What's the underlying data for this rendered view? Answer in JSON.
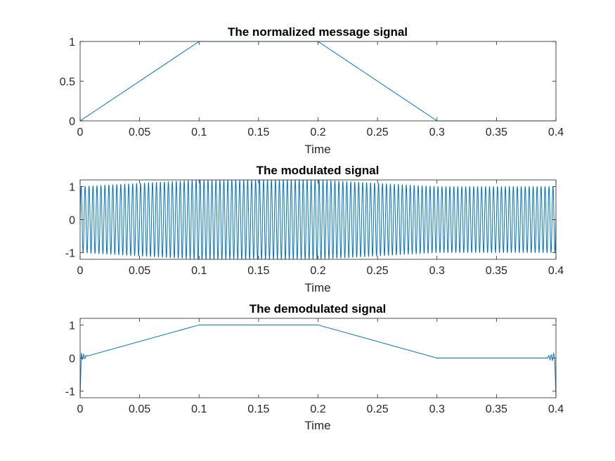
{
  "chart_data": [
    {
      "type": "line",
      "title": "The normalized message signal",
      "xlabel": "Time",
      "ylabel": "",
      "xlim": [
        0,
        0.4
      ],
      "ylim": [
        0,
        1
      ],
      "xticks": [
        0,
        0.05,
        0.1,
        0.15,
        0.2,
        0.25,
        0.3,
        0.35,
        0.4
      ],
      "xtick_labels": [
        "0",
        "0.05",
        "0.1",
        "0.15",
        "0.2",
        "0.25",
        "0.3",
        "0.35",
        "0.4"
      ],
      "yticks": [
        0,
        0.5,
        1
      ],
      "ytick_labels": [
        "0",
        "0.5",
        "1"
      ],
      "grid": false,
      "series": [
        {
          "x": [
            0,
            0.1,
            0.2,
            0.3,
            0.4
          ],
          "y": [
            0,
            1,
            1,
            0,
            0
          ]
        }
      ]
    },
    {
      "type": "line",
      "title": "The modulated signal",
      "xlabel": "Time",
      "ylabel": "",
      "xlim": [
        0,
        0.4
      ],
      "ylim": [
        -1.2,
        1.2
      ],
      "xticks": [
        0,
        0.05,
        0.1,
        0.15,
        0.2,
        0.25,
        0.3,
        0.35,
        0.4
      ],
      "xtick_labels": [
        "0",
        "0.05",
        "0.1",
        "0.15",
        "0.2",
        "0.25",
        "0.3",
        "0.35",
        "0.4"
      ],
      "yticks": [
        -1,
        0,
        1
      ],
      "ytick_labels": [
        "-1",
        "0",
        "1"
      ],
      "grid": false,
      "carrier_cycles": 120,
      "envelope": {
        "x": [
          0,
          0.1,
          0.2,
          0.3,
          0.4
        ],
        "y": [
          1,
          1.2,
          1.2,
          1,
          1
        ]
      }
    },
    {
      "type": "line",
      "title": "The demodulated signal",
      "xlabel": "Time",
      "ylabel": "",
      "xlim": [
        0,
        0.4
      ],
      "ylim": [
        -1.2,
        1.2
      ],
      "xticks": [
        0,
        0.05,
        0.1,
        0.15,
        0.2,
        0.25,
        0.3,
        0.35,
        0.4
      ],
      "xtick_labels": [
        "0",
        "0.05",
        "0.1",
        "0.15",
        "0.2",
        "0.25",
        "0.3",
        "0.35",
        "0.4"
      ],
      "yticks": [
        -1,
        0,
        1
      ],
      "ytick_labels": [
        "-1",
        "0",
        "1"
      ],
      "grid": false,
      "series": [
        {
          "x": [
            0,
            0.001,
            0.002,
            0.003,
            0.004,
            0.005,
            0.006,
            0.1,
            0.2,
            0.3,
            0.393,
            0.394,
            0.395,
            0.396,
            0.397,
            0.398,
            0.399,
            0.4
          ],
          "y": [
            -1.15,
            0.15,
            -0.05,
            0.12,
            -0.02,
            0.08,
            0.06,
            1,
            1,
            0,
            0,
            0.08,
            -0.06,
            0.1,
            -0.08,
            0.15,
            -0.05,
            -1.15
          ]
        }
      ]
    }
  ],
  "style": {
    "line_color": "#0072BD",
    "axes_color": "#262626"
  }
}
